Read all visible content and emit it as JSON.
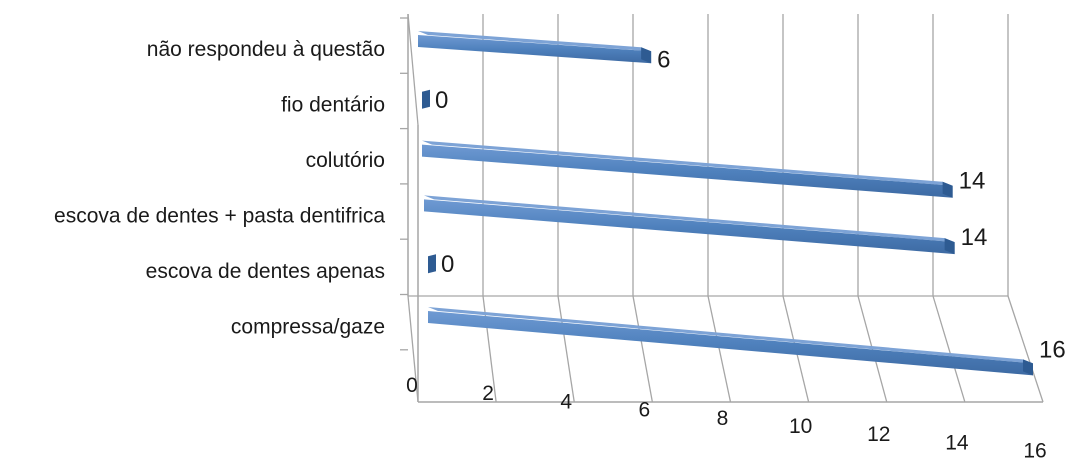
{
  "chart_data": {
    "type": "bar",
    "orientation": "horizontal",
    "style": "3d",
    "categories": [
      "não respondeu à questão",
      "fio dentário",
      "colutório",
      "escova de dentes + pasta dentifrica",
      "escova de dentes apenas",
      "compressa/gaze"
    ],
    "values": [
      6,
      0,
      14,
      14,
      0,
      16
    ],
    "xlim": [
      0,
      16
    ],
    "xticks": [
      "0",
      "2",
      "4",
      "6",
      "8",
      "10",
      "12",
      "14",
      "16"
    ],
    "grid": true,
    "legend": "none",
    "data_labels": true,
    "colors": {
      "bar_front": "#4f81bd",
      "bar_top": "#7da3d6",
      "bar_end": "#2e5b92",
      "grid": "#a6a6a6"
    }
  }
}
